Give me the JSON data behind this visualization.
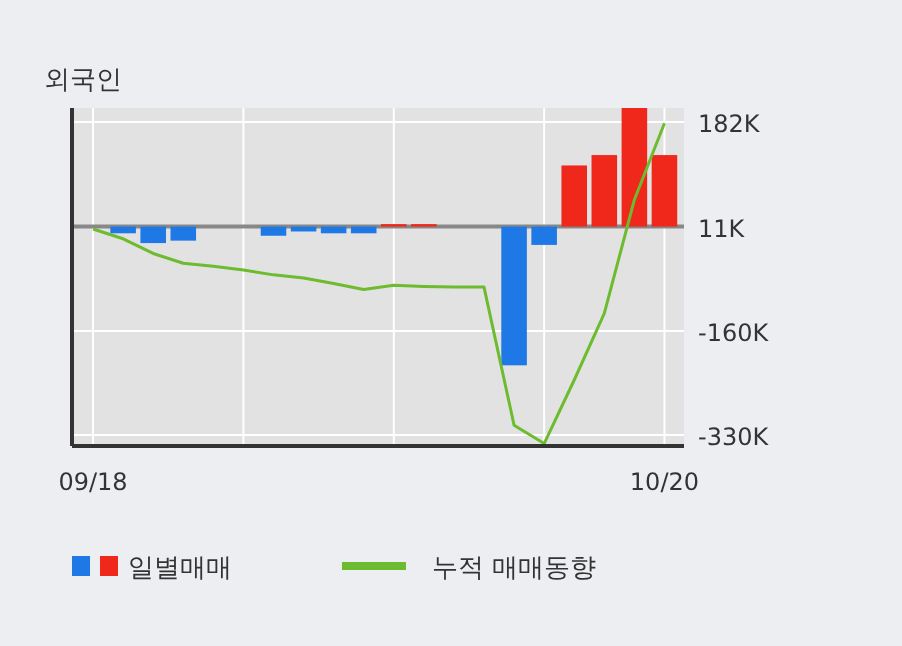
{
  "chart_data": {
    "type": "bar",
    "title": "외국인",
    "categories": [
      "09/18",
      null,
      null,
      null,
      null,
      null,
      null,
      null,
      null,
      null,
      null,
      null,
      null,
      null,
      null,
      null,
      null,
      null,
      null,
      "10/20"
    ],
    "series": [
      {
        "name": "일별매매",
        "type": "bar",
        "base": [
          null,
          11,
          11,
          11,
          null,
          null,
          11,
          11,
          11,
          11,
          11,
          11,
          null,
          null,
          11,
          11,
          11,
          11,
          11,
          11
        ],
        "values": [
          null,
          -11,
          -27,
          -23,
          null,
          null,
          -15,
          -8,
          -11,
          -11,
          4,
          4,
          null,
          null,
          -227,
          -30,
          100,
          117,
          194,
          117
        ],
        "colors": [
          "#1e78e6",
          "#1e78e6",
          "#1e78e6",
          "#1e78e6",
          "#1e78e6",
          "#1e78e6",
          "#1e78e6",
          "#1e78e6",
          "#1e78e6",
          "#1e78e6",
          "#f0281c",
          "#f0281c",
          "#f0281c",
          "#f0281c",
          "#1e78e6",
          "#1e78e6",
          "#f0281c",
          "#f0281c",
          "#f0281c",
          "#f0281c"
        ]
      },
      {
        "name": "누적 매매동향",
        "type": "line",
        "color": "#6dbb2f",
        "values": [
          7,
          -9,
          -33,
          -49,
          -54,
          -60,
          -68,
          -73,
          -82,
          -92,
          -85,
          -87,
          -88,
          -88,
          -314,
          -344,
          -240,
          -131,
          55,
          180
        ]
      }
    ],
    "ylim": [
      -348,
      205
    ],
    "yticks": [
      {
        "value": 182,
        "label": "182K"
      },
      {
        "value": 11,
        "label": "11K"
      },
      {
        "value": -160,
        "label": "-160K"
      },
      {
        "value": -330,
        "label": "-330K"
      }
    ],
    "ref_lines": [
      {
        "axis": "y",
        "value": 11,
        "color": "#888888"
      }
    ],
    "grid": true,
    "legend": "bottom"
  }
}
